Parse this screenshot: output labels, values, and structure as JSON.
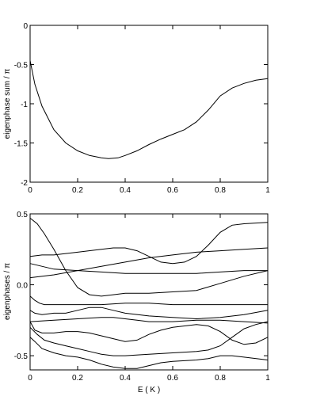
{
  "chart_data": [
    {
      "type": "line",
      "xlabel": "",
      "ylabel": "eigenphase sum / π",
      "xlim": [
        0,
        1
      ],
      "ylim": [
        -2,
        0
      ],
      "xticks": [
        "0",
        "0.2",
        "0.4",
        "0.6",
        "0.8",
        "1"
      ],
      "yticks": [
        "0",
        "-0.5",
        "-1",
        "-1.5",
        "-2"
      ],
      "xtick_values": [
        0,
        0.2,
        0.4,
        0.6,
        0.8,
        1
      ],
      "ytick_values": [
        0,
        -0.5,
        -1,
        -1.5,
        -2
      ],
      "grid": false,
      "series": [
        {
          "x": [
            0.0,
            0.02,
            0.05,
            0.1,
            0.15,
            0.2,
            0.25,
            0.3,
            0.33,
            0.37,
            0.4,
            0.45,
            0.5,
            0.55,
            0.6,
            0.65,
            0.7,
            0.75,
            0.8,
            0.85,
            0.9,
            0.95,
            1.0
          ],
          "y": [
            -0.45,
            -0.75,
            -1.03,
            -1.33,
            -1.5,
            -1.6,
            -1.66,
            -1.69,
            -1.7,
            -1.69,
            -1.66,
            -1.6,
            -1.52,
            -1.45,
            -1.39,
            -1.33,
            -1.23,
            -1.08,
            -0.9,
            -0.8,
            -0.74,
            -0.7,
            -0.68
          ]
        }
      ]
    },
    {
      "type": "line",
      "xlabel": "E  ( K )",
      "ylabel": "eigenphases / π",
      "xlim": [
        0,
        1
      ],
      "ylim": [
        -0.6,
        0.5
      ],
      "xticks": [
        "0",
        "0.2",
        "0.4",
        "0.6",
        "0.8",
        "1"
      ],
      "yticks": [
        "0.5",
        "0.0",
        "-0.5"
      ],
      "xtick_values": [
        0,
        0.2,
        0.4,
        0.6,
        0.8,
        1
      ],
      "ytick_values": [
        0.5,
        0,
        -0.5
      ],
      "grid": false,
      "series": [
        {
          "x": [
            0.0,
            0.03,
            0.06,
            0.1,
            0.15,
            0.2,
            0.25,
            0.3,
            0.35,
            0.4,
            0.5,
            0.6,
            0.7,
            0.8,
            0.9,
            1.0
          ],
          "y": [
            0.47,
            0.43,
            0.36,
            0.25,
            0.1,
            -0.02,
            -0.07,
            -0.08,
            -0.07,
            -0.06,
            -0.06,
            -0.05,
            -0.04,
            0.01,
            0.06,
            0.1
          ]
        },
        {
          "x": [
            0.0,
            0.05,
            0.1,
            0.2,
            0.3,
            0.35,
            0.4,
            0.45,
            0.5,
            0.55,
            0.6,
            0.65,
            0.7,
            0.75,
            0.8,
            0.85,
            0.9,
            1.0
          ],
          "y": [
            0.2,
            0.21,
            0.21,
            0.23,
            0.25,
            0.26,
            0.26,
            0.24,
            0.2,
            0.16,
            0.15,
            0.16,
            0.2,
            0.28,
            0.37,
            0.42,
            0.43,
            0.44
          ]
        },
        {
          "x": [
            0.0,
            0.1,
            0.2,
            0.3,
            0.4,
            0.5,
            0.6,
            0.7,
            0.8,
            0.9,
            1.0
          ],
          "y": [
            0.05,
            0.07,
            0.1,
            0.13,
            0.16,
            0.19,
            0.21,
            0.23,
            0.24,
            0.25,
            0.26
          ]
        },
        {
          "x": [
            0.0,
            0.1,
            0.2,
            0.3,
            0.4,
            0.5,
            0.6,
            0.7,
            0.8,
            0.9,
            1.0
          ],
          "y": [
            0.15,
            0.11,
            0.1,
            0.09,
            0.08,
            0.08,
            0.08,
            0.08,
            0.09,
            0.1,
            0.1
          ]
        },
        {
          "x": [
            0.0,
            0.02,
            0.04,
            0.06,
            0.1,
            0.15,
            0.2,
            0.25,
            0.3,
            0.4,
            0.5,
            0.6,
            0.7,
            0.8,
            0.9,
            1.0
          ],
          "y": [
            -0.08,
            -0.11,
            -0.13,
            -0.14,
            -0.14,
            -0.14,
            -0.14,
            -0.14,
            -0.14,
            -0.13,
            -0.13,
            -0.14,
            -0.14,
            -0.14,
            -0.14,
            -0.14
          ]
        },
        {
          "x": [
            0.0,
            0.02,
            0.05,
            0.1,
            0.15,
            0.2,
            0.25,
            0.3,
            0.35,
            0.4,
            0.5,
            0.6,
            0.7,
            0.8,
            0.9,
            1.0
          ],
          "y": [
            -0.18,
            -0.2,
            -0.21,
            -0.2,
            -0.2,
            -0.18,
            -0.16,
            -0.16,
            -0.18,
            -0.2,
            -0.22,
            -0.23,
            -0.24,
            -0.23,
            -0.21,
            -0.18
          ]
        },
        {
          "x": [
            0.0,
            0.1,
            0.2,
            0.3,
            0.35,
            0.4,
            0.45,
            0.5,
            0.6,
            0.7,
            0.8,
            0.9,
            1.0
          ],
          "y": [
            -0.26,
            -0.25,
            -0.24,
            -0.23,
            -0.23,
            -0.24,
            -0.25,
            -0.26,
            -0.26,
            -0.25,
            -0.25,
            -0.26,
            -0.27
          ]
        },
        {
          "x": [
            0.0,
            0.02,
            0.05,
            0.1,
            0.15,
            0.2,
            0.25,
            0.3,
            0.35,
            0.4,
            0.45,
            0.5,
            0.55,
            0.6,
            0.7,
            0.75,
            0.8,
            0.85,
            0.9,
            0.95,
            1.0
          ],
          "y": [
            -0.26,
            -0.32,
            -0.34,
            -0.34,
            -0.33,
            -0.33,
            -0.34,
            -0.36,
            -0.38,
            -0.4,
            -0.39,
            -0.35,
            -0.32,
            -0.3,
            -0.28,
            -0.29,
            -0.33,
            -0.39,
            -0.42,
            -0.41,
            -0.37
          ]
        },
        {
          "x": [
            0.0,
            0.03,
            0.06,
            0.1,
            0.15,
            0.2,
            0.25,
            0.3,
            0.35,
            0.4,
            0.5,
            0.6,
            0.7,
            0.75,
            0.8,
            0.85,
            0.9,
            0.95,
            1.0
          ],
          "y": [
            -0.3,
            -0.35,
            -0.39,
            -0.41,
            -0.43,
            -0.45,
            -0.47,
            -0.49,
            -0.5,
            -0.5,
            -0.49,
            -0.48,
            -0.47,
            -0.46,
            -0.43,
            -0.37,
            -0.31,
            -0.28,
            -0.26
          ]
        },
        {
          "x": [
            0.0,
            0.02,
            0.05,
            0.1,
            0.15,
            0.2,
            0.25,
            0.3,
            0.35,
            0.4,
            0.45,
            0.5,
            0.55,
            0.6,
            0.7,
            0.75,
            0.8,
            0.85,
            0.9,
            1.0
          ],
          "y": [
            -0.37,
            -0.4,
            -0.45,
            -0.48,
            -0.5,
            -0.51,
            -0.53,
            -0.56,
            -0.58,
            -0.59,
            -0.59,
            -0.57,
            -0.55,
            -0.54,
            -0.53,
            -0.52,
            -0.5,
            -0.5,
            -0.51,
            -0.53
          ]
        }
      ]
    }
  ]
}
